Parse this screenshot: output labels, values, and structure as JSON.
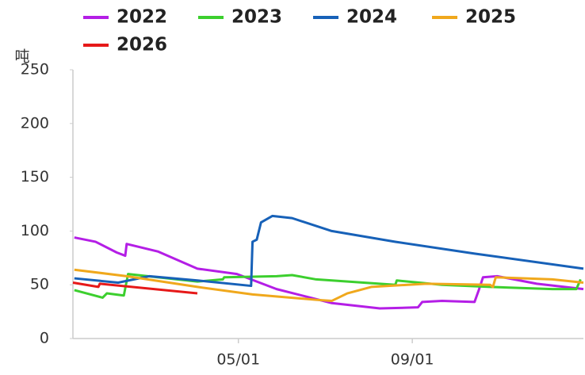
{
  "chart_data": {
    "type": "line",
    "y_label": "吨",
    "xlim": [
      4,
      365
    ],
    "xticks": [
      {
        "value": 121,
        "label": "05/01"
      },
      {
        "value": 244,
        "label": "09/01"
      }
    ],
    "ylim": [
      0,
      250
    ],
    "yticks": [
      0,
      50,
      100,
      150,
      200,
      250
    ],
    "series": [
      {
        "name": "2022",
        "color": "#b41ee6",
        "x": [
          5,
          20,
          35,
          41,
          42,
          64,
          92,
          120,
          148,
          187,
          221,
          248,
          251,
          265,
          288,
          291,
          294,
          304,
          332,
          365
        ],
        "values": [
          94,
          90,
          80,
          77,
          88,
          81,
          65,
          60,
          46,
          33,
          28,
          29,
          34,
          35,
          34,
          45,
          57,
          58,
          51,
          46
        ]
      },
      {
        "name": "2023",
        "color": "#3ccf2e",
        "x": [
          5,
          25,
          28,
          40,
          43,
          64,
          92,
          110,
          111,
          148,
          159,
          176,
          232,
          233,
          265,
          299,
          343,
          360,
          363
        ],
        "values": [
          45,
          38,
          42,
          40,
          60,
          57,
          53,
          55,
          57,
          58,
          59,
          55,
          50,
          54,
          50,
          48,
          46,
          46,
          55
        ]
      },
      {
        "name": "2024",
        "color": "#1761b8",
        "x": [
          5,
          36,
          58,
          92,
          130,
          131,
          134,
          137,
          145,
          159,
          187,
          232,
          288,
          365
        ],
        "values": [
          56,
          52,
          58,
          54,
          49,
          90,
          92,
          108,
          114,
          112,
          100,
          90,
          79,
          65
        ]
      },
      {
        "name": "2025",
        "color": "#f0a81c",
        "x": [
          5,
          42,
          92,
          131,
          176,
          187,
          198,
          215,
          254,
          299,
          301,
          303,
          343,
          365
        ],
        "values": [
          64,
          58,
          48,
          41,
          36,
          35,
          42,
          48,
          51,
          50,
          48,
          57,
          55,
          52
        ]
      },
      {
        "name": "2026",
        "color": "#e61919",
        "x": [
          4,
          22,
          23,
          92
        ],
        "values": [
          52,
          48,
          51,
          42
        ]
      }
    ]
  }
}
